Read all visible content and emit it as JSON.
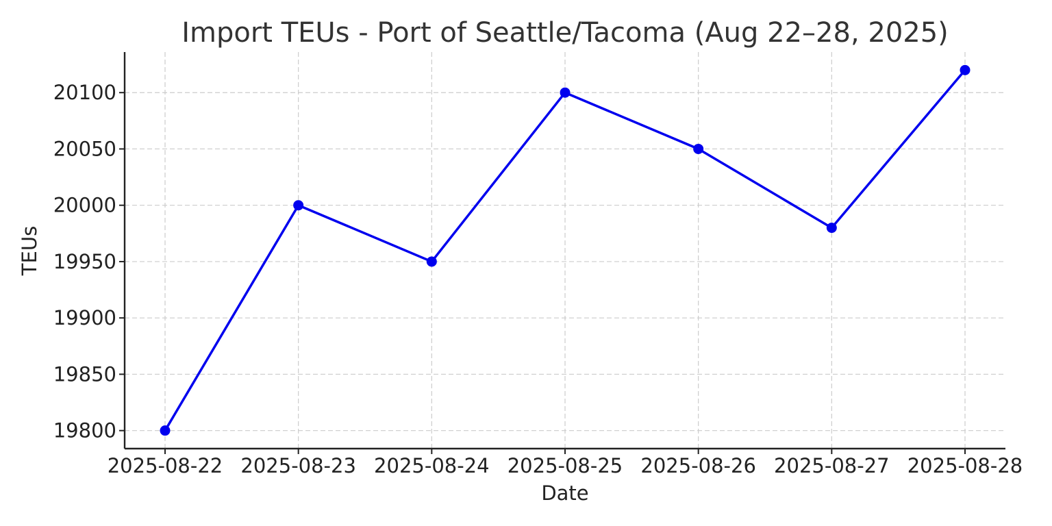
{
  "chart_data": {
    "type": "line",
    "title": "Import TEUs - Port of Seattle/Tacoma (Aug 22–28, 2025)",
    "xlabel": "Date",
    "ylabel": "TEUs",
    "categories": [
      "2025-08-22",
      "2025-08-23",
      "2025-08-24",
      "2025-08-25",
      "2025-08-26",
      "2025-08-27",
      "2025-08-28"
    ],
    "series": [
      {
        "values": [
          19800,
          20000,
          19950,
          20100,
          20050,
          19980,
          20120
        ],
        "color": "#0000ee",
        "marker": "circle"
      }
    ],
    "yticks": [
      19800,
      19850,
      19900,
      19950,
      20000,
      20050,
      20100
    ],
    "ylim": [
      19784,
      20136
    ],
    "grid": true,
    "grid_style": "dashed",
    "legend": "none"
  }
}
